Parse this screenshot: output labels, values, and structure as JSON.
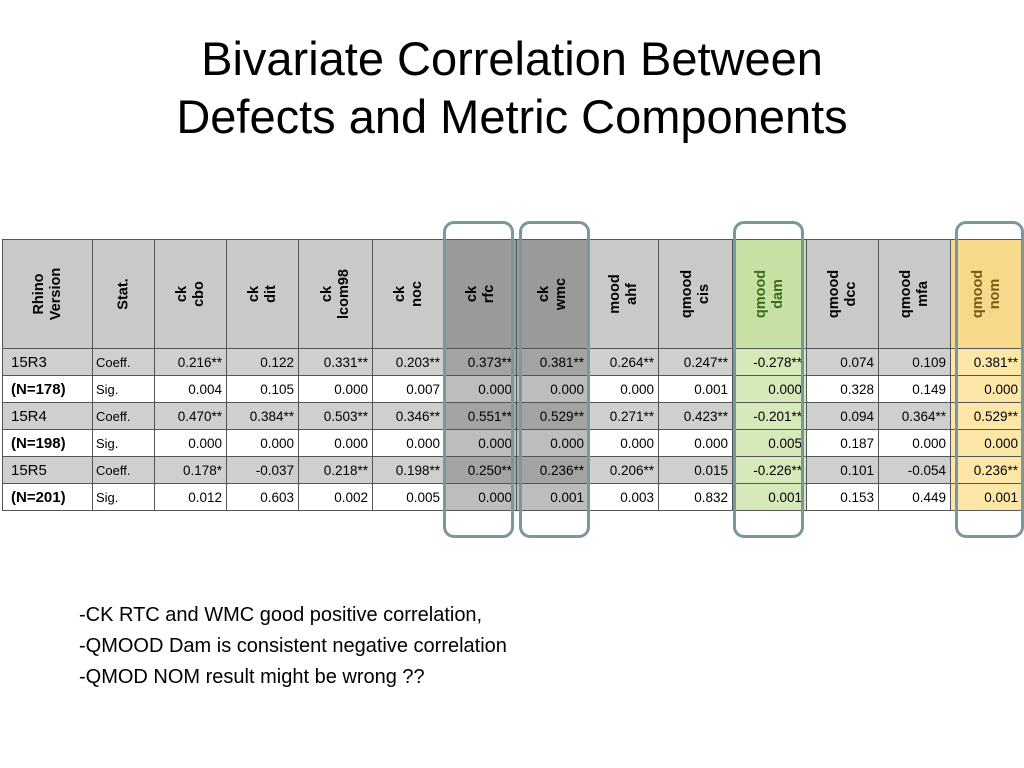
{
  "title": {
    "line1": "Bivariate Correlation Between",
    "line2": "Defects and Metric Components"
  },
  "table": {
    "corner": [
      "Rhino",
      "Version"
    ],
    "stat_header": "Stat.",
    "columns": [
      [
        "ck",
        "cbo"
      ],
      [
        "ck",
        "dit"
      ],
      [
        "ck",
        "lcom98"
      ],
      [
        "ck",
        "noc"
      ],
      [
        "ck",
        "rfc"
      ],
      [
        "ck",
        "wmc"
      ],
      [
        "mood",
        "ahf"
      ],
      [
        "qmood",
        "cis"
      ],
      [
        "qmood",
        "dam"
      ],
      [
        "qmood",
        "dcc"
      ],
      [
        "qmood",
        "mfa"
      ],
      [
        "qmood",
        "nom"
      ]
    ],
    "rows": [
      {
        "label": "15R3",
        "bold": false,
        "stat": "Coeff.",
        "values": [
          "0.216**",
          "0.122",
          "0.331**",
          "0.203**",
          "0.373**",
          "0.381**",
          "0.264**",
          "0.247**",
          "-0.278**",
          "0.074",
          "0.109",
          "0.381**"
        ]
      },
      {
        "label": "(N=178)",
        "bold": true,
        "stat": "Sig.",
        "values": [
          "0.004",
          "0.105",
          "0.000",
          "0.007",
          "0.000",
          "0.000",
          "0.000",
          "0.001",
          "0.000",
          "0.328",
          "0.149",
          "0.000"
        ]
      },
      {
        "label": "15R4",
        "bold": false,
        "stat": "Coeff.",
        "values": [
          "0.470**",
          "0.384**",
          "0.503**",
          "0.346**",
          "0.551**",
          "0.529**",
          "0.271**",
          "0.423**",
          "-0.201**",
          "0.094",
          "0.364**",
          "0.529**"
        ]
      },
      {
        "label": "(N=198)",
        "bold": true,
        "stat": "Sig.",
        "values": [
          "0.000",
          "0.000",
          "0.000",
          "0.000",
          "0.000",
          "0.000",
          "0.000",
          "0.000",
          "0.005",
          "0.187",
          "0.000",
          "0.000"
        ]
      },
      {
        "label": "15R5",
        "bold": false,
        "stat": "Coeff.",
        "values": [
          "0.178*",
          "-0.037",
          "0.218**",
          "0.198**",
          "0.250**",
          "0.236**",
          "0.206**",
          "0.015",
          "-0.226**",
          "0.101",
          "-0.054",
          "0.236**"
        ]
      },
      {
        "label": "(N=201)",
        "bold": true,
        "stat": "Sig.",
        "values": [
          "0.012",
          "0.603",
          "0.002",
          "0.005",
          "0.000",
          "0.001",
          "0.003",
          "0.832",
          "0.001",
          "0.153",
          "0.449",
          "0.001"
        ]
      }
    ]
  },
  "highlight_colors": {
    "gray": "#a3a3a3",
    "green": "#d5eab8",
    "yellow": "#fde7a8",
    "border": "#7a97a0"
  },
  "notes": [
    "-CK RTC and WMC good positive correlation,",
    "-QMOOD Dam is consistent negative correlation",
    "-QMOD NOM result might be wrong ??"
  ]
}
